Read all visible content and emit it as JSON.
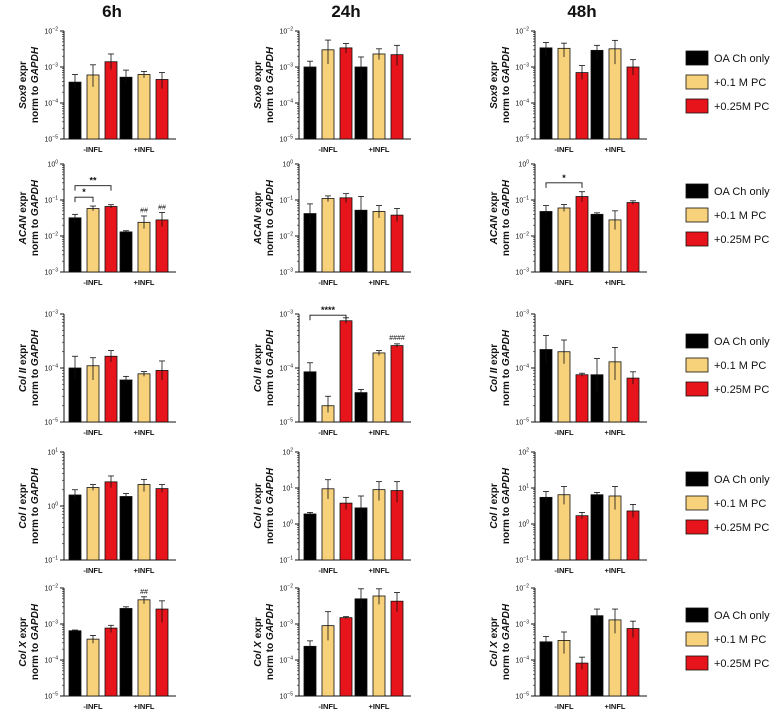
{
  "time_headers": [
    "6h",
    "24h",
    "48h"
  ],
  "x_categories": [
    "-INFL",
    "+INFL"
  ],
  "legend": [
    {
      "label": "OA Ch only",
      "color": "#000000"
    },
    {
      "label": "+0.1 M PC",
      "color": "#f7d27a"
    },
    {
      "label": "+0.25M PC",
      "color": "#e8141b"
    }
  ],
  "y_label_suffix": " expr",
  "y_label_line2": "norm to ",
  "y_label_gene_ref": "GAPDH",
  "chart_data": [
    {
      "type": "bar",
      "row": 0,
      "col": 0,
      "gene": "Sox9",
      "title": "6h",
      "ylim_exp": [
        -5,
        -2
      ],
      "scale": "log",
      "categories": [
        "-INFL",
        "+INFL"
      ],
      "series": [
        {
          "name": "OA Ch only",
          "values": [
            0.00038,
            0.00052
          ],
          "err": [
            [
              0.00025,
              0.00062
            ],
            [
              0.00035,
              0.00082
            ]
          ]
        },
        {
          "name": "+0.1 M PC",
          "values": [
            0.0006,
            0.00062
          ],
          "err": [
            [
              0.00028,
              0.00115
            ],
            [
              0.0005,
              0.00075
            ]
          ]
        },
        {
          "name": "+0.25M PC",
          "values": [
            0.0014,
            0.00045
          ],
          "err": [
            [
              0.00085,
              0.0023
            ],
            [
              0.00025,
              0.0007
            ]
          ]
        }
      ],
      "annotations": []
    },
    {
      "type": "bar",
      "row": 0,
      "col": 1,
      "gene": "Sox9",
      "title": "24h",
      "ylim_exp": [
        -5,
        -2
      ],
      "scale": "log",
      "categories": [
        "-INFL",
        "+INFL"
      ],
      "series": [
        {
          "name": "OA Ch only",
          "values": [
            0.001,
            0.001
          ],
          "err": [
            [
              0.00075,
              0.00145
            ],
            [
              0.00045,
              0.0019
            ]
          ]
        },
        {
          "name": "+0.1 M PC",
          "values": [
            0.003,
            0.0023
          ],
          "err": [
            [
              0.0012,
              0.0056
            ],
            [
              0.0016,
              0.0032
            ]
          ]
        },
        {
          "name": "+0.25M PC",
          "values": [
            0.0034,
            0.0022
          ],
          "err": [
            [
              0.0024,
              0.0045
            ],
            [
              0.0011,
              0.004
            ]
          ]
        }
      ],
      "annotations": []
    },
    {
      "type": "bar",
      "row": 0,
      "col": 2,
      "gene": "Sox9",
      "title": "48h",
      "ylim_exp": [
        -5,
        -2
      ],
      "scale": "log",
      "categories": [
        "-INFL",
        "+INFL"
      ],
      "series": [
        {
          "name": "OA Ch only",
          "values": [
            0.0034,
            0.0029
          ],
          "err": [
            [
              0.002,
              0.0048
            ],
            [
              0.0017,
              0.004
            ]
          ]
        },
        {
          "name": "+0.1 M PC",
          "values": [
            0.0033,
            0.0032
          ],
          "err": [
            [
              0.0019,
              0.0046
            ],
            [
              0.0012,
              0.0055
            ]
          ]
        },
        {
          "name": "+0.25M PC",
          "values": [
            0.0007,
            0.001
          ],
          "err": [
            [
              0.00045,
              0.0011
            ],
            [
              0.0006,
              0.0016
            ]
          ]
        }
      ],
      "annotations": []
    },
    {
      "type": "bar",
      "row": 1,
      "col": 0,
      "gene": "ACAN",
      "title": "6h",
      "ylim_exp": [
        -3,
        0
      ],
      "scale": "log",
      "categories": [
        "-INFL",
        "+INFL"
      ],
      "series": [
        {
          "name": "OA Ch only",
          "values": [
            0.032,
            0.013
          ],
          "err": [
            [
              0.025,
              0.04
            ],
            [
              0.012,
              0.014
            ]
          ]
        },
        {
          "name": "+0.1 M PC",
          "values": [
            0.058,
            0.024
          ],
          "err": [
            [
              0.05,
              0.068
            ],
            [
              0.016,
              0.036
            ]
          ]
        },
        {
          "name": "+0.25M PC",
          "values": [
            0.066,
            0.028
          ],
          "err": [
            [
              0.06,
              0.074
            ],
            [
              0.018,
              0.045
            ]
          ]
        }
      ],
      "annotations": [
        {
          "type": "bracket",
          "from": [
            0,
            0
          ],
          "to": [
            0,
            1
          ],
          "y": 0.12,
          "text": "*"
        },
        {
          "type": "bracket",
          "from": [
            0,
            0
          ],
          "to": [
            0,
            2
          ],
          "y": 0.25,
          "text": "**"
        },
        {
          "type": "label",
          "at": [
            1,
            1
          ],
          "y": 0.045,
          "text": "##"
        },
        {
          "type": "label",
          "at": [
            1,
            2
          ],
          "y": 0.055,
          "text": "##"
        }
      ]
    },
    {
      "type": "bar",
      "row": 1,
      "col": 1,
      "gene": "ACAN",
      "title": "24h",
      "ylim_exp": [
        -3,
        0
      ],
      "scale": "log",
      "categories": [
        "-INFL",
        "+INFL"
      ],
      "series": [
        {
          "name": "OA Ch only",
          "values": [
            0.042,
            0.052
          ],
          "err": [
            [
              0.022,
              0.078
            ],
            [
              0.022,
              0.125
            ]
          ]
        },
        {
          "name": "+0.1 M PC",
          "values": [
            0.11,
            0.048
          ],
          "err": [
            [
              0.09,
              0.13
            ],
            [
              0.032,
              0.07
            ]
          ]
        },
        {
          "name": "+0.25M PC",
          "values": [
            0.115,
            0.038
          ],
          "err": [
            [
              0.085,
              0.15
            ],
            [
              0.025,
              0.058
            ]
          ]
        }
      ],
      "annotations": []
    },
    {
      "type": "bar",
      "row": 1,
      "col": 2,
      "gene": "ACAN",
      "title": "48h",
      "ylim_exp": [
        -3,
        0
      ],
      "scale": "log",
      "categories": [
        "-INFL",
        "+INFL"
      ],
      "series": [
        {
          "name": "OA Ch only",
          "values": [
            0.048,
            0.04
          ],
          "err": [
            [
              0.032,
              0.07
            ],
            [
              0.036,
              0.044
            ]
          ]
        },
        {
          "name": "+0.1 M PC",
          "values": [
            0.06,
            0.028
          ],
          "err": [
            [
              0.048,
              0.075
            ],
            [
              0.015,
              0.05
            ]
          ]
        },
        {
          "name": "+0.25M PC",
          "values": [
            0.125,
            0.085
          ],
          "err": [
            [
              0.09,
              0.17
            ],
            [
              0.075,
              0.095
            ]
          ]
        }
      ],
      "annotations": [
        {
          "type": "bracket",
          "from": [
            0,
            0
          ],
          "to": [
            0,
            2
          ],
          "y": 0.3,
          "text": "*"
        }
      ]
    },
    {
      "type": "bar",
      "row": 2,
      "col": 0,
      "gene": "Col II",
      "title": "6h",
      "ylim_exp": [
        -5,
        -3
      ],
      "scale": "log",
      "categories": [
        "-INFL",
        "+INFL"
      ],
      "series": [
        {
          "name": "OA Ch only",
          "values": [
            0.0001,
            6e-05
          ],
          "err": [
            [
              6.5e-05,
              0.000165
            ],
            [
              5.2e-05,
              7e-05
            ]
          ]
        },
        {
          "name": "+0.1 M PC",
          "values": [
            0.00011,
            7.8e-05
          ],
          "err": [
            [
              6e-05,
              0.000155
            ],
            [
              7e-05,
              8.6e-05
            ]
          ]
        },
        {
          "name": "+0.25M PC",
          "values": [
            0.000165,
            9e-05
          ],
          "err": [
            [
              0.00013,
              0.00021
            ],
            [
              6e-05,
              0.000135
            ]
          ]
        }
      ],
      "annotations": []
    },
    {
      "type": "bar",
      "row": 2,
      "col": 1,
      "gene": "Col II",
      "title": "24h",
      "ylim_exp": [
        -5,
        -3
      ],
      "scale": "log",
      "categories": [
        "-INFL",
        "+INFL"
      ],
      "series": [
        {
          "name": "OA Ch only",
          "values": [
            8.5e-05,
            3.5e-05
          ],
          "err": [
            [
              6e-05,
              0.000125
            ],
            [
              3e-05,
              4e-05
            ]
          ]
        },
        {
          "name": "+0.1 M PC",
          "values": [
            2e-05,
            0.00019
          ],
          "err": [
            [
              1.5e-05,
              3e-05
            ],
            [
              0.00017,
              0.00021
            ]
          ]
        },
        {
          "name": "+0.25M PC",
          "values": [
            0.00075,
            0.00026
          ],
          "err": [
            [
              0.00067,
              0.00085
            ],
            [
              0.00024,
              0.00028
            ]
          ]
        }
      ],
      "annotations": [
        {
          "type": "bracket",
          "from": [
            0,
            0
          ],
          "to": [
            0,
            2
          ],
          "y": 0.00095,
          "text": "****"
        },
        {
          "type": "label",
          "at": [
            1,
            2
          ],
          "y": 0.00033,
          "text": "####"
        }
      ]
    },
    {
      "type": "bar",
      "row": 2,
      "col": 2,
      "gene": "Col II",
      "title": "48h",
      "ylim_exp": [
        -5,
        -3
      ],
      "scale": "log",
      "categories": [
        "-INFL",
        "+INFL"
      ],
      "series": [
        {
          "name": "OA Ch only",
          "values": [
            0.00022,
            7.5e-05
          ],
          "err": [
            [
              0.00012,
              0.0004
            ],
            [
              3.5e-05,
              0.00015
            ]
          ]
        },
        {
          "name": "+0.1 M PC",
          "values": [
            0.0002,
            0.00013
          ],
          "err": [
            [
              0.00012,
              0.00033
            ],
            [
              6e-05,
              0.00024
            ]
          ]
        },
        {
          "name": "+0.25M PC",
          "values": [
            7.5e-05,
            6.5e-05
          ],
          "err": [
            [
              7e-05,
              8e-05
            ],
            [
              5e-05,
              8.5e-05
            ]
          ]
        }
      ],
      "annotations": []
    },
    {
      "type": "bar",
      "row": 3,
      "col": 0,
      "gene": "Col I",
      "title": "6h",
      "ylim_exp": [
        -1,
        1
      ],
      "scale": "log",
      "categories": [
        "-INFL",
        "+INFL"
      ],
      "series": [
        {
          "name": "OA Ch only",
          "values": [
            1.6,
            1.5
          ],
          "err": [
            [
              1.25,
              2.0
            ],
            [
              1.3,
              1.7
            ]
          ]
        },
        {
          "name": "+0.1 M PC",
          "values": [
            2.2,
            2.5
          ],
          "err": [
            [
              1.95,
              2.5
            ],
            [
              1.85,
              3.1
            ]
          ]
        },
        {
          "name": "+0.25M PC",
          "values": [
            2.8,
            2.1
          ],
          "err": [
            [
              2.2,
              3.6
            ],
            [
              1.8,
              2.5
            ]
          ]
        }
      ],
      "annotations": []
    },
    {
      "type": "bar",
      "row": 3,
      "col": 1,
      "gene": "Col I",
      "title": "24h",
      "ylim_exp": [
        -1,
        2
      ],
      "scale": "log",
      "categories": [
        "-INFL",
        "+INFL"
      ],
      "series": [
        {
          "name": "OA Ch only",
          "values": [
            1.9,
            2.8
          ],
          "err": [
            [
              1.7,
              2.1
            ],
            [
              1.3,
              6.0
            ]
          ]
        },
        {
          "name": "+0.1 M PC",
          "values": [
            9.5,
            9.0
          ],
          "err": [
            [
              5.0,
              17
            ],
            [
              4.5,
              15
            ]
          ]
        },
        {
          "name": "+0.25M PC",
          "values": [
            3.8,
            8.5
          ],
          "err": [
            [
              2.5,
              5.5
            ],
            [
              4.0,
              15
            ]
          ]
        }
      ],
      "annotations": []
    },
    {
      "type": "bar",
      "row": 3,
      "col": 2,
      "gene": "Col I",
      "title": "48h",
      "ylim_exp": [
        -1,
        2
      ],
      "scale": "log",
      "categories": [
        "-INFL",
        "+INFL"
      ],
      "series": [
        {
          "name": "OA Ch only",
          "values": [
            5.5,
            6.5
          ],
          "err": [
            [
              3.5,
              8.0
            ],
            [
              5.0,
              7.5
            ]
          ]
        },
        {
          "name": "+0.1 M PC",
          "values": [
            6.5,
            6.0
          ],
          "err": [
            [
              3.5,
              11
            ],
            [
              2.5,
              11
            ]
          ]
        },
        {
          "name": "+0.25M PC",
          "values": [
            1.7,
            2.3
          ],
          "err": [
            [
              1.4,
              2.1
            ],
            [
              1.5,
              3.5
            ]
          ]
        }
      ],
      "annotations": []
    },
    {
      "type": "bar",
      "row": 4,
      "col": 0,
      "gene": "Col X",
      "title": "6h",
      "ylim_exp": [
        -5,
        -2
      ],
      "scale": "log",
      "categories": [
        "-INFL",
        "+INFL"
      ],
      "series": [
        {
          "name": "OA Ch only",
          "values": [
            0.00065,
            0.0027
          ],
          "err": [
            [
              0.00062,
              0.00068
            ],
            [
              0.0024,
              0.003
            ]
          ]
        },
        {
          "name": "+0.1 M PC",
          "values": [
            0.00038,
            0.0047
          ],
          "err": [
            [
              0.00029,
              0.00048
            ],
            [
              0.0036,
              0.0057
            ]
          ]
        },
        {
          "name": "+0.25M PC",
          "values": [
            0.00077,
            0.0026
          ],
          "err": [
            [
              0.00058,
              0.00092
            ],
            [
              0.0011,
              0.0044
            ]
          ]
        }
      ],
      "annotations": [
        {
          "type": "label",
          "at": [
            1,
            1
          ],
          "y": 0.0068,
          "text": "##"
        }
      ]
    },
    {
      "type": "bar",
      "row": 4,
      "col": 1,
      "gene": "Col X",
      "title": "24h",
      "ylim_exp": [
        -5,
        -2
      ],
      "scale": "log",
      "categories": [
        "-INFL",
        "+INFL"
      ],
      "series": [
        {
          "name": "OA Ch only",
          "values": [
            0.00024,
            0.005
          ],
          "err": [
            [
              0.00018,
              0.00034
            ],
            [
              0.0028,
              0.0095
            ]
          ]
        },
        {
          "name": "+0.1 M PC",
          "values": [
            0.0009,
            0.006
          ],
          "err": [
            [
              0.00035,
              0.0022
            ],
            [
              0.0035,
              0.0095
            ]
          ]
        },
        {
          "name": "+0.25M PC",
          "values": [
            0.0015,
            0.0043
          ],
          "err": [
            [
              0.0014,
              0.0016
            ],
            [
              0.0022,
              0.0075
            ]
          ]
        }
      ],
      "annotations": []
    },
    {
      "type": "bar",
      "row": 4,
      "col": 2,
      "gene": "Col X",
      "title": "48h",
      "ylim_exp": [
        -5,
        -2
      ],
      "scale": "log",
      "categories": [
        "-INFL",
        "+INFL"
      ],
      "series": [
        {
          "name": "OA Ch only",
          "values": [
            0.00032,
            0.0017
          ],
          "err": [
            [
              0.00022,
              0.00045
            ],
            [
              0.0011,
              0.0026
            ]
          ]
        },
        {
          "name": "+0.1 M PC",
          "values": [
            0.00035,
            0.0013
          ],
          "err": [
            [
              0.00015,
              0.0006
            ],
            [
              0.00055,
              0.0026
            ]
          ]
        },
        {
          "name": "+0.25M PC",
          "values": [
            8.2e-05,
            0.00075
          ],
          "err": [
            [
              5.5e-05,
              0.00012
            ],
            [
              0.00042,
              0.0012
            ]
          ]
        }
      ],
      "annotations": []
    }
  ]
}
